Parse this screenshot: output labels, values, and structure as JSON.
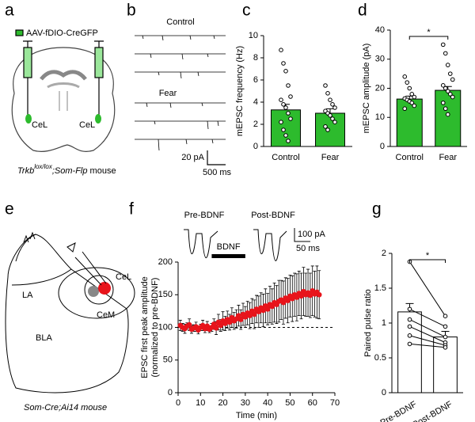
{
  "panel_letters": [
    "a",
    "b",
    "c",
    "d",
    "e",
    "f",
    "g"
  ],
  "panel_a": {
    "virus": "AAV-fDIO-CreGFP",
    "region_left": "CeL",
    "region_right": "CeL",
    "mouse": [
      "Trkb",
      "lox/lox",
      ";Som-Flp",
      " mouse"
    ]
  },
  "panel_b": {
    "group1": "Control",
    "group2": "Fear",
    "scale_y": "20 pA",
    "scale_x": "500 ms"
  },
  "panel_e": {
    "la": "LA",
    "bla": "BLA",
    "cel": "CeL",
    "cem": "CeM",
    "mouse": "Som-Cre;Ai14 mouse"
  },
  "panel_f_inset": {
    "pre": "Pre-BDNF",
    "post": "Post-BDNF",
    "scale_y": "100 pA",
    "scale_x": "50 ms"
  },
  "chart_data": [
    {
      "type": "bar",
      "ylabel": "mEPSC frequency (Hz)",
      "categories": [
        "Control",
        "Fear"
      ],
      "values": [
        3.3,
        3.0
      ],
      "errors": [
        0.5,
        0.4
      ],
      "color": "#2dbb2d",
      "points": [
        [
          8.7,
          7.5,
          6.8,
          5.5,
          4.5,
          4.2,
          3.8,
          3.5,
          3.0,
          2.5,
          2.2,
          1.5,
          1.0,
          0.5
        ],
        [
          5.5,
          4.8,
          4.2,
          3.8,
          3.5,
          3.2,
          3.0,
          2.8,
          2.5,
          2.2,
          1.8,
          1.5
        ]
      ],
      "ylim": [
        0,
        10
      ],
      "yticks": [
        0,
        2,
        4,
        6,
        8,
        10
      ]
    },
    {
      "type": "bar",
      "ylabel": "mEPSC amplitude (pA)",
      "categories": [
        "Control",
        "Fear"
      ],
      "values": [
        16.3,
        19.3
      ],
      "errors": [
        1.0,
        1.3
      ],
      "color": "#2dbb2d",
      "points": [
        [
          24,
          22,
          20,
          18,
          17,
          16.5,
          16,
          15.5,
          15,
          14,
          13
        ],
        [
          35,
          32,
          28,
          25,
          23,
          21,
          20,
          19,
          18,
          17,
          15,
          13,
          11
        ]
      ],
      "significance": "*",
      "ylim": [
        0,
        40
      ],
      "yticks": [
        0,
        10,
        20,
        30,
        40
      ]
    },
    {
      "type": "line",
      "ylabel": [
        "EPSC first peak amplitude",
        "(normalized to pre-BDNF)"
      ],
      "xlabel": "Time (min)",
      "x": [
        1,
        2,
        3,
        4,
        5,
        6,
        7,
        8,
        9,
        10,
        11,
        12,
        13,
        14,
        15,
        16,
        17,
        18,
        19,
        20,
        21,
        22,
        23,
        24,
        25,
        26,
        27,
        28,
        29,
        30,
        31,
        32,
        33,
        34,
        35,
        36,
        37,
        38,
        39,
        40,
        41,
        42,
        43,
        44,
        45,
        46,
        47,
        48,
        49,
        50,
        51,
        52,
        53,
        54,
        55,
        56,
        57,
        58,
        59,
        60,
        61,
        62,
        63
      ],
      "values": [
        103,
        100,
        98,
        102,
        104,
        97,
        99,
        101,
        96,
        100,
        103,
        98,
        102,
        97,
        100,
        105,
        99,
        108,
        103,
        110,
        106,
        112,
        108,
        115,
        110,
        113,
        118,
        112,
        120,
        116,
        122,
        118,
        125,
        120,
        128,
        124,
        130,
        126,
        133,
        128,
        135,
        132,
        138,
        135,
        140,
        142,
        138,
        145,
        141,
        148,
        144,
        150,
        146,
        152,
        148,
        155,
        150,
        153,
        149,
        156,
        151,
        154,
        150
      ],
      "errors": [
        8,
        6,
        7,
        5,
        9,
        6,
        5,
        7,
        6,
        5,
        8,
        6,
        7,
        5,
        6,
        8,
        10,
        12,
        9,
        14,
        11,
        13,
        12,
        15,
        13,
        14,
        16,
        15,
        17,
        16,
        18,
        20,
        19,
        22,
        21,
        24,
        23,
        25,
        26,
        24,
        28,
        27,
        30,
        29,
        32,
        30,
        33,
        31,
        34,
        32,
        35,
        33,
        36,
        34,
        35,
        37,
        33,
        36,
        34,
        38,
        35,
        40,
        37
      ],
      "color": "#e8141b",
      "reference_line": 100,
      "annotation": {
        "text": "BDNF",
        "x": [
          15,
          30
        ]
      },
      "xlim": [
        0,
        70
      ],
      "xticks": [
        0,
        10,
        20,
        30,
        40,
        50,
        60,
        70
      ],
      "ylim": [
        0,
        200
      ],
      "yticks": [
        0,
        50,
        100,
        150,
        200
      ]
    },
    {
      "type": "bar",
      "ylabel": "Paired pulse ratio",
      "categories": [
        "Pre-BDNF",
        "Post-BDNF"
      ],
      "values": [
        1.16,
        0.8
      ],
      "errors": [
        0.12,
        0.08
      ],
      "color": "#ffffff",
      "paired": true,
      "points": [
        [
          1.88,
          1.2,
          1.05,
          0.95,
          0.82,
          0.7
        ],
        [
          1.1,
          0.95,
          0.8,
          0.72,
          0.68,
          0.65
        ]
      ],
      "significance": "*",
      "ylim": [
        0,
        2
      ],
      "yticks": [
        0,
        0.5,
        1,
        1.5,
        2
      ]
    }
  ]
}
